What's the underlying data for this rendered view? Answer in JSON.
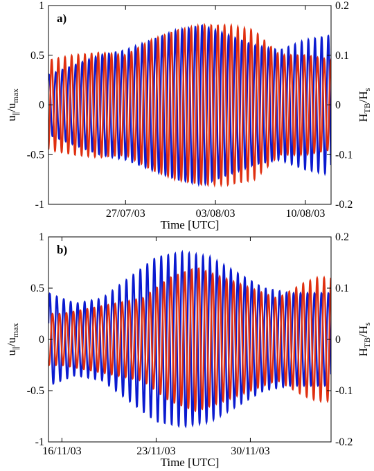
{
  "chart_data": [
    {
      "type": "line",
      "panel_label": "a)",
      "xlabel": "Time [UTC]",
      "ylabel": {
        "base": "u",
        "sub1": "||",
        "mid": "/u",
        "sub2": "max"
      },
      "y2label": {
        "base": "H",
        "sub1": "TB",
        "mid": "/H",
        "sub2": "s"
      },
      "ylim": [
        -1,
        1
      ],
      "y2lim": [
        -0.2,
        0.2
      ],
      "yticks": [
        "-1",
        "-0.5",
        "0",
        "0.5",
        "1"
      ],
      "y2ticks": [
        "-0.2",
        "-0.1",
        "0",
        "0.1",
        "0.2"
      ],
      "xlim": [
        "2003-07-21",
        "2003-08-12"
      ],
      "xticks": [
        {
          "date": "2003-07-27",
          "label": "27/07/03"
        },
        {
          "date": "2003-08-03",
          "label": "03/08/03"
        },
        {
          "date": "2003-08-10",
          "label": "10/08/03"
        }
      ],
      "grid": false,
      "series": [
        {
          "axis": "left",
          "color": "#0a1ad0",
          "model": {
            "period_days": 0.5175,
            "phase_days": 0.05,
            "envelope": [
              [
                "2003-07-21",
                0.3
              ],
              [
                "2003-07-23",
                0.4
              ],
              [
                "2003-07-25",
                0.5
              ],
              [
                "2003-07-27",
                0.55
              ],
              [
                "2003-07-29",
                0.65
              ],
              [
                "2003-07-31",
                0.75
              ],
              [
                "2003-08-02",
                0.8
              ],
              [
                "2003-08-04",
                0.7
              ],
              [
                "2003-08-06",
                0.6
              ],
              [
                "2003-08-08",
                0.55
              ],
              [
                "2003-08-10",
                0.65
              ],
              [
                "2003-08-12",
                0.7
              ]
            ]
          }
        },
        {
          "axis": "right",
          "color": "#e03010",
          "model": {
            "period_days": 0.5175,
            "phase_days": 0.25,
            "envelope": [
              [
                "2003-07-21",
                0.09
              ],
              [
                "2003-07-23",
                0.1
              ],
              [
                "2003-07-25",
                0.105
              ],
              [
                "2003-07-27",
                0.1
              ],
              [
                "2003-07-29",
                0.13
              ],
              [
                "2003-07-31",
                0.15
              ],
              [
                "2003-08-02",
                0.16
              ],
              [
                "2003-08-04",
                0.16
              ],
              [
                "2003-08-06",
                0.15
              ],
              [
                "2003-08-08",
                0.1
              ],
              [
                "2003-08-10",
                0.1
              ],
              [
                "2003-08-12",
                0.09
              ]
            ]
          }
        }
      ]
    },
    {
      "type": "line",
      "panel_label": "b)",
      "xlabel": "Time [UTC]",
      "ylabel": {
        "base": "u",
        "sub1": "||",
        "mid": "/u",
        "sub2": "max"
      },
      "y2label": {
        "base": "H",
        "sub1": "TB",
        "mid": "/H",
        "sub2": "s"
      },
      "ylim": [
        -1,
        1
      ],
      "y2lim": [
        -0.2,
        0.2
      ],
      "yticks": [
        "-1",
        "-0.5",
        "0",
        "0.5",
        "1"
      ],
      "y2ticks": [
        "-0.2",
        "-0.1",
        "0",
        "0.1",
        "0.2"
      ],
      "xlim": [
        "2003-11-15",
        "2003-12-06"
      ],
      "xticks": [
        {
          "date": "2003-11-16",
          "label": "16/11/03"
        },
        {
          "date": "2003-11-23",
          "label": "23/11/03"
        },
        {
          "date": "2003-11-30",
          "label": "30/11/03"
        }
      ],
      "grid": false,
      "series": [
        {
          "axis": "left",
          "color": "#0a1ad0",
          "model": {
            "period_days": 0.5175,
            "phase_days": 0.1,
            "envelope": [
              [
                "2003-11-15",
                0.45
              ],
              [
                "2003-11-17",
                0.35
              ],
              [
                "2003-11-19",
                0.4
              ],
              [
                "2003-11-21",
                0.6
              ],
              [
                "2003-11-23",
                0.8
              ],
              [
                "2003-11-25",
                0.85
              ],
              [
                "2003-11-27",
                0.8
              ],
              [
                "2003-11-29",
                0.65
              ],
              [
                "2003-12-01",
                0.5
              ],
              [
                "2003-12-03",
                0.45
              ],
              [
                "2003-12-06",
                0.45
              ]
            ]
          }
        },
        {
          "axis": "right",
          "color": "#e03010",
          "model": {
            "period_days": 0.5175,
            "phase_days": 0.3,
            "envelope": [
              [
                "2003-11-16",
                0.05
              ],
              [
                "2003-11-18",
                0.06
              ],
              [
                "2003-11-20",
                0.07
              ],
              [
                "2003-11-22",
                0.08
              ],
              [
                "2003-11-24",
                0.12
              ],
              [
                "2003-11-26",
                0.14
              ],
              [
                "2003-11-28",
                0.12
              ],
              [
                "2003-11-30",
                0.1
              ],
              [
                "2003-12-02",
                0.08
              ],
              [
                "2003-12-04",
                0.11
              ],
              [
                "2003-12-05",
                0.12
              ]
            ]
          }
        }
      ]
    }
  ]
}
